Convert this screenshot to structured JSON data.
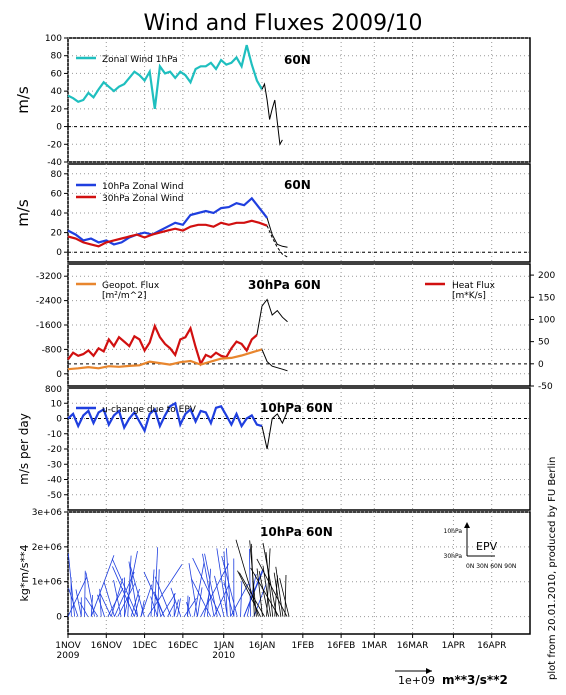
{
  "title": "Wind and Fluxes 2009/10",
  "side_note": "plot from 20.01.2010, produced by FU Berlin",
  "bottom_scale": {
    "value": "1e+09",
    "unit": "m**3/s**2"
  },
  "colors": {
    "cyan": "#1fbfbf",
    "blue": "#1f3fdf",
    "red": "#d11010",
    "orange": "#e8862e",
    "black": "#000000",
    "grid": "#999999"
  },
  "x_axis": {
    "ticks": [
      {
        "day": 0,
        "label": "1NOV",
        "sub": "2009"
      },
      {
        "day": 15,
        "label": "16NOV",
        "sub": ""
      },
      {
        "day": 30,
        "label": "1DEC",
        "sub": ""
      },
      {
        "day": 45,
        "label": "16DEC",
        "sub": ""
      },
      {
        "day": 61,
        "label": "1JAN",
        "sub": "2010"
      },
      {
        "day": 76,
        "label": "16JAN",
        "sub": ""
      },
      {
        "day": 92,
        "label": "1FEB",
        "sub": ""
      },
      {
        "day": 107,
        "label": "16FEB",
        "sub": ""
      },
      {
        "day": 120,
        "label": "1MAR",
        "sub": ""
      },
      {
        "day": 135,
        "label": "16MAR",
        "sub": ""
      },
      {
        "day": 151,
        "label": "1APR",
        "sub": ""
      },
      {
        "day": 166,
        "label": "16APR",
        "sub": ""
      }
    ]
  },
  "chart_data": [
    {
      "type": "line",
      "panel": "zonal-wind-1hpa",
      "ylabel": "m/s",
      "ylim": [
        -40,
        100
      ],
      "yticks": [
        100,
        80,
        60,
        40,
        20,
        0,
        -20,
        -40
      ],
      "location": "60N",
      "legend": [
        {
          "label": "Zonal Wind 1hPa",
          "color": "cyan"
        }
      ],
      "series": [
        {
          "name": "Zonal Wind 1hPa",
          "color": "cyan",
          "x": [
            0,
            2,
            4,
            6,
            8,
            10,
            12,
            14,
            16,
            18,
            20,
            22,
            24,
            26,
            28,
            30,
            32,
            34,
            36,
            38,
            40,
            42,
            44,
            46,
            48,
            50,
            52,
            54,
            56,
            58,
            60,
            62,
            64,
            66,
            68,
            70,
            72,
            74,
            76
          ],
          "y": [
            35,
            32,
            28,
            30,
            38,
            33,
            42,
            50,
            45,
            40,
            45,
            48,
            55,
            62,
            58,
            52,
            62,
            20,
            68,
            60,
            62,
            55,
            62,
            58,
            50,
            65,
            68,
            68,
            72,
            65,
            75,
            70,
            72,
            78,
            68,
            92,
            70,
            52,
            42
          ]
        },
        {
          "name": "forecast",
          "color": "black",
          "x": [
            76,
            77,
            78,
            79,
            80,
            81,
            82,
            83,
            84
          ],
          "y": [
            42,
            48,
            30,
            8,
            20,
            30,
            5,
            -20,
            -15
          ]
        }
      ]
    },
    {
      "type": "line",
      "panel": "zonal-wind-10-30hpa",
      "ylabel": "m/s",
      "ylim": [
        -10,
        90
      ],
      "yticks": [
        80,
        60,
        40,
        20,
        0
      ],
      "location": "60N",
      "legend": [
        {
          "label": "10hPa Zonal Wind",
          "color": "blue"
        },
        {
          "label": "30hPa Zonal Wind",
          "color": "red"
        }
      ],
      "series": [
        {
          "name": "10hPa Zonal Wind",
          "color": "blue",
          "x": [
            0,
            3,
            6,
            9,
            12,
            15,
            18,
            21,
            24,
            27,
            30,
            33,
            36,
            39,
            42,
            45,
            48,
            51,
            54,
            57,
            60,
            63,
            66,
            69,
            72,
            75,
            78
          ],
          "y": [
            22,
            18,
            12,
            14,
            10,
            12,
            8,
            10,
            15,
            18,
            20,
            18,
            22,
            26,
            30,
            28,
            38,
            40,
            42,
            40,
            45,
            46,
            50,
            48,
            55,
            45,
            35
          ]
        },
        {
          "name": "30hPa Zonal Wind",
          "color": "red",
          "x": [
            0,
            3,
            6,
            9,
            12,
            15,
            18,
            21,
            24,
            27,
            30,
            33,
            36,
            39,
            42,
            45,
            48,
            51,
            54,
            57,
            60,
            63,
            66,
            69,
            72,
            75,
            78
          ],
          "y": [
            16,
            14,
            10,
            8,
            6,
            10,
            12,
            14,
            16,
            18,
            15,
            18,
            20,
            22,
            24,
            22,
            26,
            28,
            28,
            26,
            30,
            28,
            30,
            30,
            32,
            30,
            27
          ]
        },
        {
          "name": "forecast 10hPa",
          "color": "black",
          "x": [
            78,
            80,
            82,
            84,
            86
          ],
          "y": [
            35,
            18,
            8,
            6,
            5
          ]
        },
        {
          "name": "forecast 30hPa",
          "color": "black",
          "dashed": true,
          "x": [
            78,
            80,
            82,
            84,
            86
          ],
          "y": [
            27,
            15,
            5,
            -2,
            -5
          ]
        }
      ]
    },
    {
      "type": "line",
      "panel": "fluxes-30hpa",
      "title": "30hPa 60N",
      "ylim_left": [
        -3600,
        400
      ],
      "yticks_left": [
        -3200,
        -2400,
        -1600,
        -800,
        0
      ],
      "ylim_right": [
        -50,
        225
      ],
      "yticks_right": [
        200,
        150,
        100,
        50,
        0,
        -50
      ],
      "legend": [
        {
          "label": "Geopot. Flux",
          "unit": "[m²/m^2]",
          "color": "orange"
        },
        {
          "label": "Heat Flux",
          "unit": "[m*K/s]",
          "color": "red"
        }
      ],
      "series": [
        {
          "name": "Heat Flux",
          "color": "red",
          "x": [
            0,
            2,
            4,
            6,
            8,
            10,
            12,
            14,
            16,
            18,
            20,
            22,
            24,
            26,
            28,
            30,
            32,
            34,
            36,
            38,
            40,
            42,
            44,
            46,
            48,
            50,
            52,
            54,
            56,
            58,
            60,
            62,
            64,
            66,
            68,
            70,
            72,
            74
          ],
          "y": [
            10,
            25,
            18,
            22,
            30,
            18,
            35,
            28,
            55,
            40,
            60,
            50,
            40,
            62,
            55,
            30,
            48,
            85,
            60,
            45,
            35,
            20,
            55,
            60,
            80,
            38,
            0,
            20,
            15,
            25,
            18,
            15,
            35,
            50,
            45,
            30,
            55,
            65
          ]
        },
        {
          "name": "Geopot. Flux",
          "color": "orange",
          "x": [
            0,
            4,
            8,
            12,
            16,
            20,
            24,
            28,
            32,
            36,
            40,
            44,
            48,
            52,
            56,
            60,
            64,
            68,
            72,
            76
          ],
          "y": [
            -150,
            -180,
            -220,
            -180,
            -250,
            -230,
            -260,
            -280,
            -400,
            -350,
            -300,
            -380,
            -420,
            -300,
            -400,
            -500,
            -520,
            -600,
            -700,
            -800
          ]
        },
        {
          "name": "forecast heat",
          "color": "black",
          "x": [
            74,
            76,
            78,
            80,
            82,
            84,
            86
          ],
          "y": [
            65,
            130,
            145,
            110,
            120,
            105,
            95
          ]
        },
        {
          "name": "forecast geopot",
          "color": "black",
          "x": [
            76,
            78,
            80,
            82,
            84,
            86
          ],
          "y": [
            -800,
            -400,
            -250,
            -200,
            -150,
            -100
          ]
        }
      ]
    },
    {
      "type": "line",
      "panel": "u-change-epv",
      "ylabel": "m/s per day",
      "ylim": [
        -60,
        20
      ],
      "yticks": [
        10,
        0,
        -10,
        -20,
        -30,
        -40,
        -50
      ],
      "top_label": "800",
      "location": "10hPa 60N",
      "legend": [
        {
          "label": "u-change due to EPV",
          "color": "blue"
        }
      ],
      "series": [
        {
          "name": "u-change due to EPV",
          "color": "blue",
          "x": [
            0,
            2,
            4,
            6,
            8,
            10,
            12,
            14,
            16,
            18,
            20,
            22,
            24,
            26,
            28,
            30,
            32,
            34,
            36,
            38,
            40,
            42,
            44,
            46,
            48,
            50,
            52,
            54,
            56,
            58,
            60,
            62,
            64,
            66,
            68,
            70,
            72,
            74,
            76
          ],
          "y": [
            0,
            3,
            -5,
            2,
            5,
            -3,
            4,
            6,
            -4,
            2,
            5,
            -6,
            0,
            4,
            -2,
            -8,
            3,
            6,
            -5,
            2,
            8,
            10,
            -4,
            3,
            6,
            -2,
            5,
            4,
            -3,
            7,
            8,
            2,
            -4,
            3,
            -5,
            0,
            2,
            -4,
            -5
          ]
        },
        {
          "name": "forecast",
          "color": "black",
          "x": [
            76,
            78,
            80,
            82,
            84,
            86
          ],
          "y": [
            -5,
            -20,
            0,
            3,
            -3,
            5
          ]
        }
      ]
    },
    {
      "type": "vector",
      "panel": "epv-vectors",
      "ylabel": "kg*m/s**4",
      "ylim": [
        -500000,
        3000000
      ],
      "yticks": [
        {
          "v": 3000000,
          "label": "3e+06"
        },
        {
          "v": 2000000,
          "label": "2e+06"
        },
        {
          "v": 1000000,
          "label": "1e+06"
        },
        {
          "v": 0,
          "label": "0"
        }
      ],
      "location": "10hPa 60N",
      "inset": {
        "title": "EPV",
        "y_top": "10hPa",
        "y_bottom": "30hPa",
        "x_labels": "0N 30N 60N 90N"
      }
    }
  ]
}
